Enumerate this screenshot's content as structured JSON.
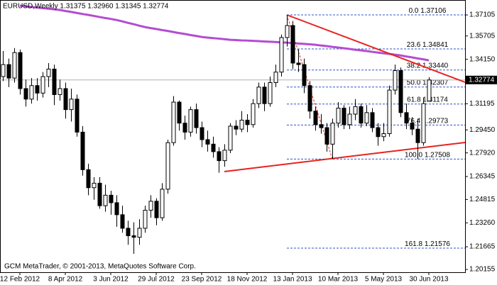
{
  "chart_data": {
    "type": "candlestick",
    "title": "EURUSD,Weekly  1.31375 1.32960 1.31345 1.32774",
    "footer": "GCM MetaTrader, © 2001-2013, MetaQuotes Software Corp.",
    "categories": [
      null,
      null,
      null,
      "12 Feb 2012",
      null,
      null,
      null,
      null,
      null,
      null,
      null,
      "8 Apr 2012",
      null,
      null,
      null,
      null,
      null,
      null,
      null,
      "3 Jun 2012",
      null,
      null,
      null,
      null,
      null,
      null,
      null,
      "29 Jul 2012",
      null,
      null,
      null,
      null,
      null,
      null,
      null,
      "23 Sep 2012",
      null,
      null,
      null,
      null,
      null,
      null,
      null,
      "18 Nov 2012",
      null,
      null,
      null,
      null,
      null,
      null,
      null,
      "13 Jan 2013",
      null,
      null,
      null,
      null,
      null,
      null,
      null,
      "10 Mar 2013",
      null,
      null,
      null,
      null,
      null,
      null,
      null,
      "5 May 2013",
      null,
      null,
      null,
      null,
      null,
      null,
      null,
      "30 Jun 2013"
    ],
    "open": [
      1.33,
      1.338,
      1.329,
      1.346,
      1.322,
      1.315,
      1.324,
      1.319,
      1.33,
      1.335,
      1.318,
      1.322,
      1.308,
      1.315,
      1.293,
      1.268,
      1.256,
      1.259,
      1.244,
      1.251,
      1.246,
      1.238,
      1.229,
      1.224,
      1.223,
      1.229,
      1.241,
      1.247,
      1.236,
      1.255,
      1.286,
      1.313,
      1.299,
      1.293,
      1.308,
      1.296,
      1.288,
      1.285,
      1.28,
      1.274,
      1.281,
      1.297,
      1.295,
      1.301,
      1.298,
      1.312,
      1.323,
      1.312,
      1.326,
      1.333,
      1.356,
      1.364,
      1.339,
      1.338,
      1.324,
      1.307,
      1.298,
      1.296,
      1.285,
      1.299,
      1.309,
      1.298,
      1.305,
      1.31,
      1.299,
      1.306,
      1.296,
      1.29,
      1.292,
      1.321,
      1.334,
      1.306,
      1.299,
      1.295,
      1.286,
      1.31375
    ],
    "high": [
      1.347,
      1.342,
      1.349,
      1.348,
      1.328,
      1.329,
      1.329,
      1.333,
      1.339,
      1.338,
      1.328,
      1.326,
      1.322,
      1.318,
      1.297,
      1.272,
      1.263,
      1.263,
      1.258,
      1.254,
      1.251,
      1.244,
      1.234,
      1.233,
      1.235,
      1.244,
      1.251,
      1.249,
      1.259,
      1.288,
      1.317,
      1.314,
      1.304,
      1.31,
      1.312,
      1.3,
      1.294,
      1.29,
      1.283,
      1.285,
      1.299,
      1.301,
      1.307,
      1.305,
      1.315,
      1.326,
      1.326,
      1.33,
      1.338,
      1.358,
      1.371,
      1.367,
      1.348,
      1.342,
      1.327,
      1.31,
      1.305,
      1.299,
      1.302,
      1.313,
      1.311,
      1.31,
      1.315,
      1.312,
      1.311,
      1.309,
      1.299,
      1.299,
      1.324,
      1.338,
      1.336,
      1.312,
      1.303,
      1.302,
      1.316,
      1.3296
    ],
    "low": [
      1.327,
      1.323,
      1.326,
      1.318,
      1.31,
      1.312,
      1.314,
      1.316,
      1.323,
      1.311,
      1.314,
      1.302,
      1.3,
      1.29,
      1.264,
      1.251,
      1.248,
      1.242,
      1.24,
      1.238,
      1.23,
      1.226,
      1.218,
      1.212,
      1.218,
      1.226,
      1.236,
      1.231,
      1.234,
      1.252,
      1.284,
      1.294,
      1.288,
      1.29,
      1.292,
      1.283,
      1.28,
      1.276,
      1.266,
      1.27,
      1.279,
      1.291,
      1.293,
      1.293,
      1.296,
      1.309,
      1.307,
      1.31,
      1.323,
      1.33,
      1.35,
      1.335,
      1.333,
      1.319,
      1.302,
      1.294,
      1.292,
      1.28,
      1.275,
      1.296,
      1.295,
      1.295,
      1.301,
      1.296,
      1.297,
      1.293,
      1.284,
      1.287,
      1.29,
      1.318,
      1.303,
      1.295,
      1.291,
      1.275,
      1.284,
      1.31345
    ],
    "close": [
      1.338,
      1.329,
      1.346,
      1.322,
      1.315,
      1.324,
      1.319,
      1.33,
      1.335,
      1.318,
      1.322,
      1.308,
      1.315,
      1.293,
      1.268,
      1.256,
      1.259,
      1.244,
      1.251,
      1.246,
      1.238,
      1.229,
      1.224,
      1.223,
      1.229,
      1.241,
      1.247,
      1.236,
      1.255,
      1.286,
      1.313,
      1.299,
      1.293,
      1.308,
      1.296,
      1.288,
      1.285,
      1.28,
      1.274,
      1.281,
      1.297,
      1.295,
      1.301,
      1.298,
      1.312,
      1.323,
      1.312,
      1.326,
      1.333,
      1.356,
      1.364,
      1.339,
      1.338,
      1.324,
      1.307,
      1.298,
      1.296,
      1.285,
      1.299,
      1.309,
      1.298,
      1.305,
      1.31,
      1.299,
      1.306,
      1.296,
      1.29,
      1.292,
      1.321,
      1.334,
      1.306,
      1.299,
      1.295,
      1.286,
      1.312,
      1.32774
    ],
    "ma": {
      "color": "#b44cd2",
      "values": [
        null,
        null,
        null,
        1.3772,
        1.3768,
        1.3764,
        1.376,
        1.3756,
        1.3752,
        1.3748,
        1.3744,
        1.3737,
        1.3731,
        1.3724,
        1.3717,
        1.3711,
        1.3704,
        1.3697,
        1.369,
        1.3684,
        1.3677,
        1.3668,
        1.3658,
        1.3649,
        1.3639,
        1.363,
        1.3623,
        1.3617,
        1.361,
        1.3604,
        1.3597,
        1.359,
        1.3584,
        1.3577,
        1.3571,
        1.3564,
        1.356,
        1.3556,
        1.3553,
        1.3549,
        1.3545,
        1.3543,
        1.3541,
        1.354,
        1.3538,
        1.3536,
        1.3534,
        1.3532,
        1.353,
        1.3528,
        1.3526,
        1.3523,
        1.352,
        1.3518,
        1.3515,
        1.3512,
        1.3507,
        1.3503,
        1.3498,
        1.3494,
        1.3489,
        1.3484,
        1.3479,
        1.3475,
        1.347,
        1.3465,
        1.346,
        1.3455,
        1.3451,
        1.3446,
        1.3441,
        1.3434,
        1.3428,
        1.3421,
        1.3415,
        1.3408
      ]
    },
    "fibo_levels": [
      {
        "ratio": "0.0",
        "value": 1.37106,
        "label": "1.37106"
      },
      {
        "ratio": "23.6",
        "value": 1.34841,
        "label": "1.34841"
      },
      {
        "ratio": "38.2",
        "value": 1.3344,
        "label": "1.33440"
      },
      {
        "ratio": "50.0",
        "value": 1.32307,
        "label": "1.32307"
      },
      {
        "ratio": "61.8",
        "value": 1.31174,
        "label": "1.31174"
      },
      {
        "ratio": "76.4",
        "value": 1.29773,
        "label": "1.29773"
      },
      {
        "ratio": "100.0",
        "value": 1.27508,
        "label": "1.27508"
      },
      {
        "ratio": "161.8",
        "value": 1.21576,
        "label": "1.21576"
      }
    ],
    "fibo_color": "#2f55c8",
    "ylim": [
      1.1997,
      1.381
    ],
    "yticks": [
      {
        "value": 1.37105,
        "label": "1.37105"
      },
      {
        "value": 1.35705,
        "label": "1.35705"
      },
      {
        "value": 1.3415,
        "label": "1.34150"
      },
      {
        "value": 1.31195,
        "label": "1.31195"
      },
      {
        "value": 1.2945,
        "label": "1.29450"
      },
      {
        "value": 1.2792,
        "label": "1.27920"
      },
      {
        "value": 1.26345,
        "label": "1.26345"
      },
      {
        "value": 1.24815,
        "label": "1.24815"
      },
      {
        "value": 1.2326,
        "label": "1.23260"
      },
      {
        "value": 1.21665,
        "label": "1.21665"
      },
      {
        "value": 1.20155,
        "label": "1.20155"
      }
    ],
    "bull_color": "#ffffff",
    "bear_color": "#000000"
  }
}
